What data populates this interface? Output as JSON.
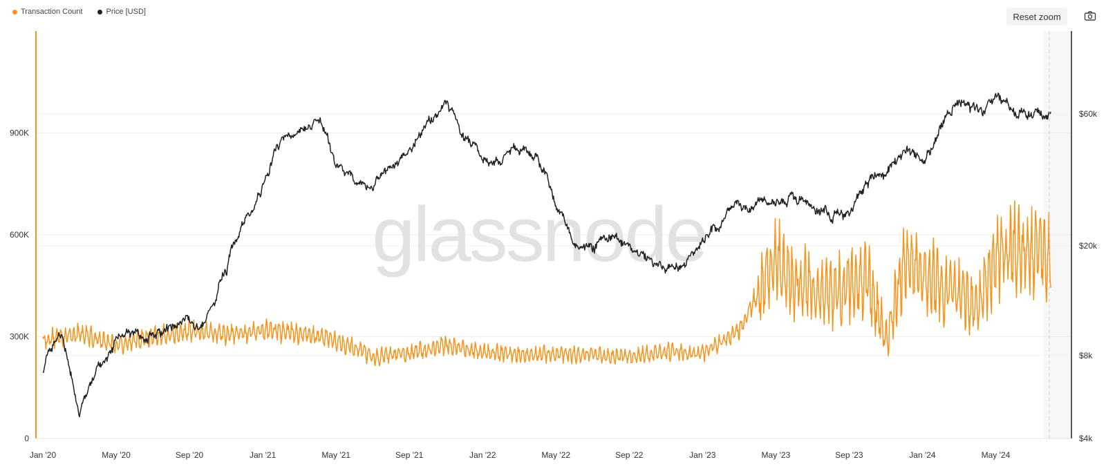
{
  "watermark": "glassnode",
  "reset_zoom_label": "Reset zoom",
  "legend": [
    {
      "label": "Transaction Count",
      "color": "#f7931a"
    },
    {
      "label": "Price [USD]",
      "color": "#222222"
    }
  ],
  "icons": {
    "camera": "camera-icon"
  },
  "chart_data": {
    "type": "line",
    "x_ticks": [
      "Jan '20",
      "May '20",
      "Sep '20",
      "Jan '21",
      "May '21",
      "Sep '21",
      "Jan '22",
      "May '22",
      "Sep '22",
      "Jan '23",
      "May '23",
      "Sep '23",
      "Jan '24",
      "May '24"
    ],
    "y_left": {
      "scale": "linear",
      "range": [
        0,
        1200000
      ],
      "ticks": [
        "0",
        "300K",
        "600K",
        "900K"
      ],
      "tick_values": [
        0,
        300000,
        600000,
        900000
      ]
    },
    "y_right": {
      "scale": "log",
      "range": [
        4000,
        120000
      ],
      "ticks": [
        "$4k",
        "$8k",
        "$20k",
        "$60k"
      ],
      "tick_values": [
        4000,
        8000,
        20000,
        60000
      ]
    },
    "grid": true,
    "legend_position": "top-left",
    "series": [
      {
        "name": "Transaction Count",
        "axis": "left",
        "color": "#f7931a",
        "x": [
          "2020-01",
          "2020-03",
          "2020-05",
          "2020-07",
          "2020-09",
          "2020-11",
          "2021-01",
          "2021-03",
          "2021-05",
          "2021-07",
          "2021-09",
          "2021-11",
          "2022-01",
          "2022-03",
          "2022-05",
          "2022-07",
          "2022-09",
          "2022-11",
          "2023-01",
          "2023-03",
          "2023-05",
          "2023-06",
          "2023-08",
          "2023-10",
          "2023-11",
          "2023-12",
          "2024-02",
          "2024-04",
          "2024-05",
          "2024-06",
          "2024-07"
        ],
        "values": [
          290000,
          310000,
          275000,
          300000,
          315000,
          305000,
          320000,
          310000,
          290000,
          240000,
          250000,
          275000,
          255000,
          245000,
          250000,
          245000,
          240000,
          255000,
          250000,
          320000,
          520000,
          460000,
          420000,
          480000,
          290000,
          500000,
          460000,
          380000,
          520000,
          560000,
          540000
        ]
      },
      {
        "name": "Price [USD]",
        "axis": "right",
        "color": "#222222",
        "x": [
          "2020-01",
          "2020-02",
          "2020-03",
          "2020-04",
          "2020-05",
          "2020-07",
          "2020-09",
          "2020-10",
          "2020-11",
          "2021-01",
          "2021-02",
          "2021-04",
          "2021-05",
          "2021-06",
          "2021-07",
          "2021-09",
          "2021-11",
          "2021-12",
          "2022-01",
          "2022-03",
          "2022-04",
          "2022-05",
          "2022-06",
          "2022-08",
          "2022-09",
          "2022-11",
          "2022-12",
          "2023-01",
          "2023-03",
          "2023-04",
          "2023-06",
          "2023-07",
          "2023-08",
          "2023-09",
          "2023-10",
          "2023-11",
          "2023-12",
          "2024-01",
          "2024-02",
          "2024-03",
          "2024-04",
          "2024-05",
          "2024-06",
          "2024-07"
        ],
        "values": [
          7200,
          9500,
          5000,
          7500,
          9300,
          9500,
          10800,
          11500,
          16000,
          33000,
          48000,
          58000,
          37000,
          35000,
          32000,
          45000,
          64000,
          49000,
          39000,
          44000,
          40000,
          29000,
          20000,
          22000,
          19500,
          16500,
          16800,
          21000,
          28000,
          28500,
          30000,
          29500,
          26000,
          26000,
          34000,
          37000,
          43000,
          40000,
          52000,
          68000,
          63000,
          67000,
          62000,
          60000
        ]
      }
    ]
  }
}
